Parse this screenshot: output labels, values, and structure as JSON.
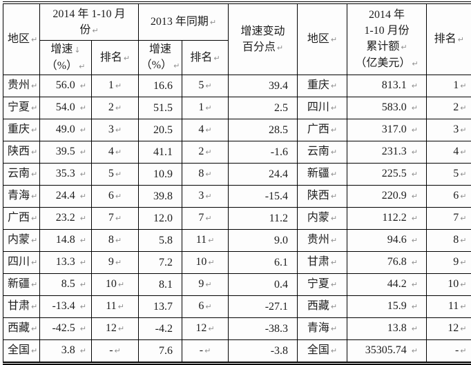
{
  "icons": {
    "paragraph_mark": "↵",
    "line_break": "↓"
  },
  "table": {
    "headers": {
      "region_left": "地区",
      "grp_2014_l1": "2014 年 1-10 月",
      "grp_2014_l2": "份",
      "grp_2013": "2013 年同期",
      "growth_label": "增速",
      "growth_unit": "（%）",
      "rank_2014": "排名",
      "rank_2013": "排名",
      "change_l1": "增速变动",
      "change_l2": "百分点",
      "region_right": "地区",
      "amount_l1": "2014 年",
      "amount_l2": "1-10 月份",
      "amount_l3": "累计额",
      "amount_l4": "（亿美元）",
      "rank_right": "排名"
    },
    "rows": [
      [
        "贵州",
        "56.0",
        "1",
        "16.6",
        "5",
        "39.4",
        "重庆",
        "813.1",
        "1"
      ],
      [
        "宁夏",
        "54.0",
        "2",
        "51.5",
        "1",
        "2.5",
        "四川",
        "583.0",
        "2"
      ],
      [
        "重庆",
        "49.0",
        "3",
        "20.5",
        "4",
        "28.5",
        "广西",
        "317.0",
        "3"
      ],
      [
        "陕西",
        "39.5",
        "4",
        "41.1",
        "2",
        "-1.6",
        "云南",
        "231.3",
        "4"
      ],
      [
        "云南",
        "35.3",
        "5",
        "10.9",
        "8",
        "24.4",
        "新疆",
        "225.5",
        "5"
      ],
      [
        "青海",
        "24.4",
        "6",
        "39.8",
        "3",
        "-15.4",
        "陕西",
        "220.9",
        "6"
      ],
      [
        "广西",
        "23.2",
        "7",
        "12.0",
        "7",
        "11.2",
        "内蒙",
        "112.2",
        "7"
      ],
      [
        "内蒙",
        "14.8",
        "8",
        "5.8",
        "11",
        "9.0",
        "贵州",
        "94.6",
        "8"
      ],
      [
        "四川",
        "13.3",
        "9",
        "7.2",
        "10",
        "6.1",
        "甘肃",
        "76.8",
        "9"
      ],
      [
        "新疆",
        "8.5",
        "10",
        "8.1",
        "9",
        "0.4",
        "宁夏",
        "44.2",
        "10"
      ],
      [
        "甘肃",
        "-13.4",
        "11",
        "13.7",
        "6",
        "-27.1",
        "西藏",
        "15.9",
        "11"
      ],
      [
        "西藏",
        "-42.5",
        "12",
        "-4.2",
        "12",
        "-38.3",
        "青海",
        "13.8",
        "12"
      ],
      [
        "全国",
        "3.8",
        "-",
        "7.6",
        "-",
        "-3.8",
        "全国",
        "35305.74",
        "-"
      ]
    ]
  }
}
